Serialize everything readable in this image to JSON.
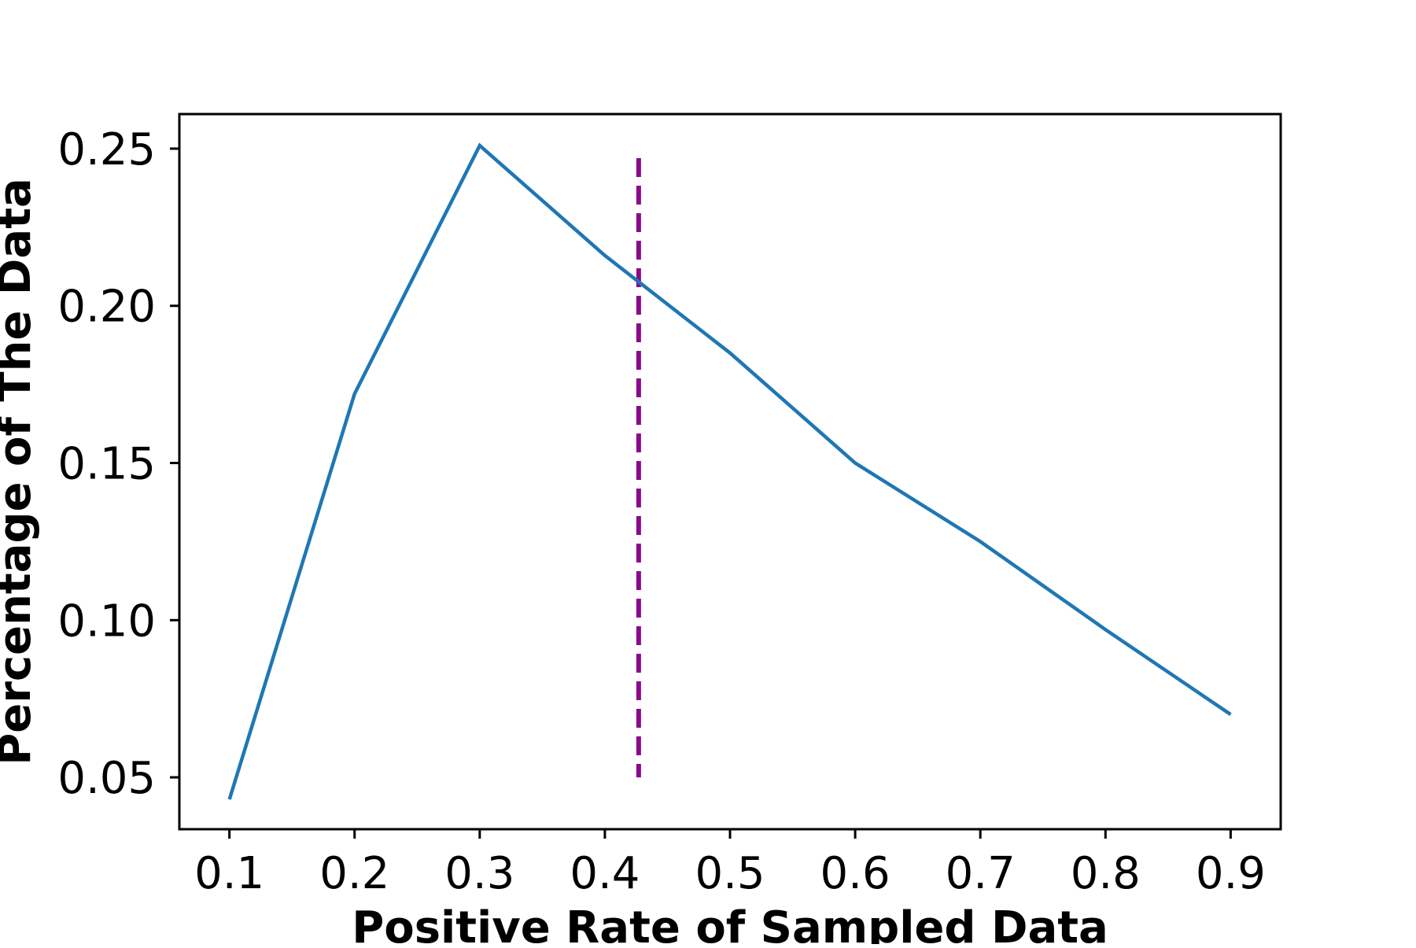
{
  "chart_data": {
    "type": "line",
    "title": "",
    "xlabel": "Positive Rate of Sampled Data",
    "ylabel": "Percentage of The Data",
    "xlim": [
      0.06,
      0.94
    ],
    "ylim": [
      0.0335,
      0.261
    ],
    "x_ticks": [
      "0.1",
      "0.2",
      "0.3",
      "0.4",
      "0.5",
      "0.6",
      "0.7",
      "0.8",
      "0.9"
    ],
    "y_ticks": [
      "0.05",
      "0.10",
      "0.15",
      "0.20",
      "0.25"
    ],
    "grid": false,
    "series": [
      {
        "color": "#1f77b4",
        "x": [
          0.1,
          0.2,
          0.3,
          0.4,
          0.5,
          0.6,
          0.7,
          0.8,
          0.9
        ],
        "y": [
          0.043,
          0.172,
          0.251,
          0.216,
          0.185,
          0.15,
          0.125,
          0.097,
          0.07
        ]
      }
    ],
    "reference_line": {
      "orientation": "vertical",
      "x": 0.427,
      "y_range": [
        0.05,
        0.247
      ],
      "style": "dashed",
      "color": "#8b0a8b"
    }
  }
}
